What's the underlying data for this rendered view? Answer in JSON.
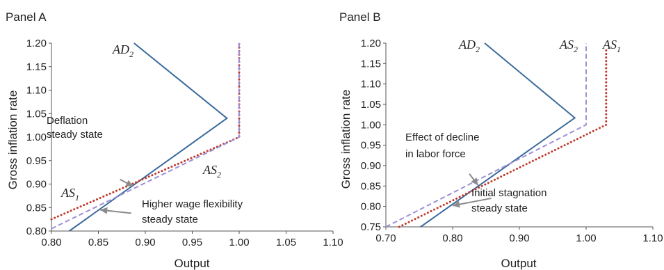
{
  "chart_data": [
    {
      "panel": "Panel A",
      "type": "line",
      "xlabel": "Output",
      "ylabel": "Gross inflation rate",
      "xlim": [
        0.8,
        1.1
      ],
      "ylim": [
        0.8,
        1.2
      ],
      "xticks": [
        "0.80",
        "0.85",
        "0.90",
        "0.95",
        "1.00",
        "1.05",
        "1.10"
      ],
      "yticks": [
        "0.80",
        "0.85",
        "0.90",
        "0.95",
        "1.00",
        "1.05",
        "1.10",
        "1.15",
        "1.20"
      ],
      "series": [
        {
          "key": "AD2",
          "name_main": "AD",
          "name_sub": "2",
          "color": "#3a6a9a",
          "style": "solid",
          "points": [
            [
              0.819,
              0.8
            ],
            [
              0.987,
              1.04
            ],
            [
              0.888,
              1.2
            ]
          ]
        },
        {
          "key": "AS1",
          "name_main": "AS",
          "name_sub": "1",
          "color": "#c0392b",
          "style": "dotted",
          "points": [
            [
              0.8,
              0.825
            ],
            [
              1.0,
              1.0
            ],
            [
              1.0,
              1.2
            ]
          ]
        },
        {
          "key": "AS2",
          "name_main": "AS",
          "name_sub": "2",
          "color": "#9b8fd6",
          "style": "dashed",
          "points": [
            [
              0.8,
              0.805
            ],
            [
              1.0,
              1.0
            ],
            [
              1.0,
              1.2
            ]
          ]
        }
      ],
      "annotations": [
        {
          "text": [
            "Deflation",
            "steady state"
          ],
          "arrow_from": [
            0.873,
            0.91
          ],
          "arrow_to": [
            0.887,
            0.895
          ]
        },
        {
          "text": [
            "Higher wage flexibility",
            "steady state"
          ],
          "arrow_from": [
            0.885,
            0.838
          ],
          "arrow_to": [
            0.852,
            0.845
          ]
        }
      ]
    },
    {
      "panel": "Panel B",
      "type": "line",
      "xlabel": "Output",
      "ylabel": "Gross inflation rate",
      "xlim": [
        0.7,
        1.1
      ],
      "ylim": [
        0.75,
        1.2
      ],
      "xticks": [
        "0.70",
        "0.80",
        "0.90",
        "1.00",
        "1.10"
      ],
      "yticks": [
        "0.75",
        "0.80",
        "0.85",
        "0.90",
        "0.95",
        "1.00",
        "1.05",
        "1.10",
        "1.15",
        "1.20"
      ],
      "series": [
        {
          "key": "AD2",
          "name_main": "AD",
          "name_sub": "2",
          "color": "#3a6a9a",
          "style": "solid",
          "points": [
            [
              0.752,
              0.75
            ],
            [
              0.983,
              1.017
            ],
            [
              0.848,
              1.2
            ]
          ]
        },
        {
          "key": "AS2",
          "name_main": "AS",
          "name_sub": "2",
          "color": "#9b8fd6",
          "style": "dashed",
          "points": [
            [
              0.7,
              0.75
            ],
            [
              1.0,
              1.0
            ],
            [
              1.0,
              1.2
            ]
          ]
        },
        {
          "key": "AS1",
          "name_main": "AS",
          "name_sub": "1",
          "color": "#c0392b",
          "style": "dotted",
          "points": [
            [
              0.72,
              0.75
            ],
            [
              1.03,
              1.0
            ],
            [
              1.03,
              1.19
            ]
          ]
        }
      ],
      "annotations": [
        {
          "text": [
            "Effect of decline",
            "in labor force"
          ],
          "arrow_from": [
            0.825,
            0.88
          ],
          "arrow_to": [
            0.838,
            0.852
          ]
        },
        {
          "text": [
            "Initial stagnation",
            "steady state"
          ],
          "arrow_from": [
            0.858,
            0.82
          ],
          "arrow_to": [
            0.8,
            0.802
          ]
        }
      ]
    }
  ]
}
